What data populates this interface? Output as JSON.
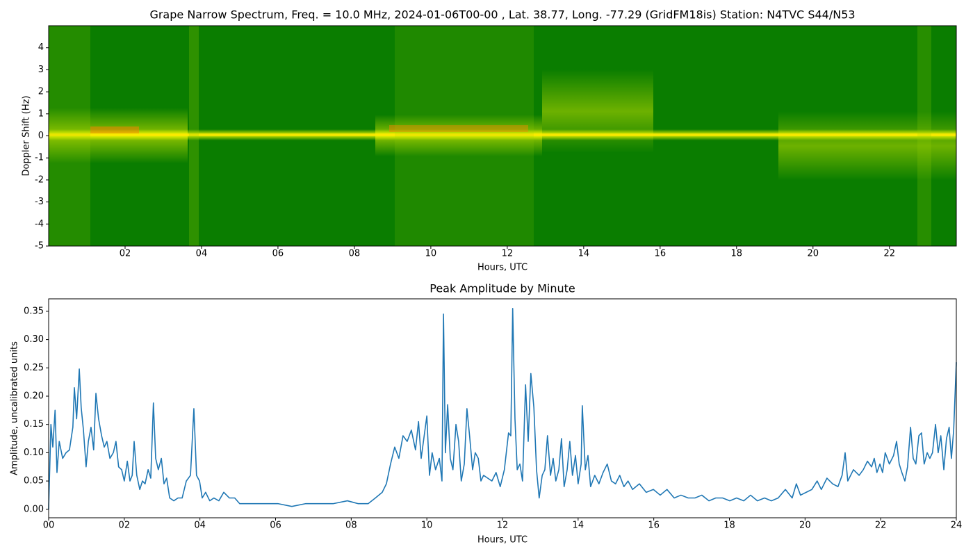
{
  "chart_data": [
    {
      "type": "spectrogram",
      "title": "Grape Narrow Spectrum, Freq. = 10.0 MHz, 2024-01-06T00-00 , Lat.  38.77, Long. -77.29 (GridFM18is) Station: N4TVC S44/N53",
      "x_label": "Hours, UTC",
      "y_label": "Doppler Shift (Hz)",
      "xlim": [
        0,
        23.75
      ],
      "ylim": [
        -5,
        5
      ],
      "xticks": [
        {
          "value": 2,
          "label": "02"
        },
        {
          "value": 4,
          "label": "04"
        },
        {
          "value": 6,
          "label": "06"
        },
        {
          "value": 8,
          "label": "08"
        },
        10,
        12,
        14,
        16,
        18,
        20,
        22
      ],
      "yticks": [
        -5,
        -4,
        -3,
        -2,
        -1,
        0,
        1,
        2,
        3,
        4
      ]
    },
    {
      "type": "line",
      "title": "Peak Amplitude by Minute",
      "x_label": "Hours, UTC",
      "y_label": "Amplitude, uncalibrated units",
      "color": "#1f77b4",
      "xlim": [
        0,
        24
      ],
      "ylim": [
        -0.015,
        0.372
      ],
      "xticks": [
        {
          "value": 0,
          "label": "00"
        },
        {
          "value": 2,
          "label": "02"
        },
        {
          "value": 4,
          "label": "04"
        },
        {
          "value": 6,
          "label": "06"
        },
        {
          "value": 8,
          "label": "08"
        },
        10,
        12,
        14,
        16,
        18,
        20,
        22,
        24
      ],
      "yticks": [
        {
          "value": 0,
          "label": "0.00"
        },
        0.05,
        {
          "value": 0.1,
          "label": "0.10"
        },
        0.15,
        {
          "value": 0.2,
          "label": "0.20"
        },
        0.25,
        {
          "value": 0.3,
          "label": "0.30"
        },
        0.35
      ],
      "x": [
        0,
        0.06,
        0.11,
        0.17,
        0.22,
        0.28,
        0.37,
        0.46,
        0.55,
        0.64,
        0.68,
        0.74,
        0.81,
        0.86,
        0.92,
        0.99,
        1.05,
        1.12,
        1.19,
        1.25,
        1.32,
        1.4,
        1.47,
        1.54,
        1.62,
        1.71,
        1.78,
        1.85,
        1.93,
        2.0,
        2.08,
        2.15,
        2.21,
        2.26,
        2.33,
        2.41,
        2.48,
        2.55,
        2.63,
        2.7,
        2.77,
        2.83,
        2.9,
        2.98,
        3.05,
        3.12,
        3.2,
        3.31,
        3.42,
        3.53,
        3.64,
        3.75,
        3.84,
        3.91,
        3.99,
        4.06,
        4.15,
        4.26,
        4.37,
        4.5,
        4.63,
        4.78,
        4.92,
        5.05,
        5.33,
        5.7,
        6.06,
        6.43,
        6.8,
        7.17,
        7.53,
        7.9,
        8.18,
        8.45,
        8.64,
        8.82,
        8.93,
        9.04,
        9.15,
        9.26,
        9.37,
        9.48,
        9.59,
        9.7,
        9.78,
        9.85,
        9.92,
        10.0,
        10.07,
        10.14,
        10.23,
        10.33,
        10.4,
        10.44,
        10.49,
        10.55,
        10.62,
        10.69,
        10.77,
        10.84,
        10.91,
        10.99,
        11.06,
        11.13,
        11.21,
        11.28,
        11.36,
        11.43,
        11.5,
        11.61,
        11.72,
        11.83,
        11.94,
        12.05,
        12.16,
        12.22,
        12.27,
        12.33,
        12.39,
        12.46,
        12.53,
        12.61,
        12.68,
        12.75,
        12.83,
        12.9,
        12.97,
        13.05,
        13.12,
        13.19,
        13.27,
        13.34,
        13.41,
        13.49,
        13.56,
        13.63,
        13.71,
        13.78,
        13.85,
        13.93,
        14.0,
        14.08,
        14.11,
        14.19,
        14.26,
        14.33,
        14.44,
        14.55,
        14.66,
        14.77,
        14.88,
        14.99,
        15.1,
        15.21,
        15.32,
        15.44,
        15.62,
        15.8,
        15.99,
        16.17,
        16.35,
        16.54,
        16.72,
        16.91,
        17.09,
        17.27,
        17.46,
        17.64,
        17.82,
        18.01,
        18.19,
        18.38,
        18.56,
        18.74,
        18.93,
        19.11,
        19.29,
        19.48,
        19.66,
        19.77,
        19.88,
        20.03,
        20.18,
        20.32,
        20.43,
        20.58,
        20.73,
        20.87,
        20.98,
        21.06,
        21.13,
        21.28,
        21.43,
        21.54,
        21.65,
        21.76,
        21.83,
        21.9,
        21.98,
        22.05,
        22.12,
        22.23,
        22.34,
        22.42,
        22.49,
        22.56,
        22.64,
        22.71,
        22.79,
        22.86,
        22.93,
        23.01,
        23.08,
        23.15,
        23.23,
        23.3,
        23.37,
        23.45,
        23.52,
        23.59,
        23.67,
        23.74,
        23.81,
        23.87,
        23.93,
        24.0
      ],
      "values": [
        0,
        0.15,
        0.11,
        0.175,
        0.065,
        0.12,
        0.09,
        0.1,
        0.105,
        0.145,
        0.215,
        0.16,
        0.248,
        0.18,
        0.14,
        0.075,
        0.12,
        0.145,
        0.105,
        0.205,
        0.16,
        0.13,
        0.11,
        0.12,
        0.09,
        0.1,
        0.12,
        0.075,
        0.07,
        0.05,
        0.085,
        0.05,
        0.06,
        0.12,
        0.06,
        0.035,
        0.05,
        0.045,
        0.07,
        0.055,
        0.188,
        0.09,
        0.07,
        0.09,
        0.045,
        0.055,
        0.02,
        0.015,
        0.02,
        0.02,
        0.05,
        0.06,
        0.178,
        0.06,
        0.05,
        0.02,
        0.03,
        0.015,
        0.02,
        0.015,
        0.03,
        0.02,
        0.02,
        0.01,
        0.01,
        0.01,
        0.01,
        0.005,
        0.01,
        0.01,
        0.01,
        0.015,
        0.01,
        0.01,
        0.02,
        0.03,
        0.045,
        0.08,
        0.11,
        0.09,
        0.13,
        0.12,
        0.14,
        0.105,
        0.155,
        0.09,
        0.125,
        0.165,
        0.06,
        0.1,
        0.07,
        0.09,
        0.05,
        0.345,
        0.1,
        0.185,
        0.09,
        0.07,
        0.15,
        0.12,
        0.05,
        0.08,
        0.178,
        0.13,
        0.07,
        0.1,
        0.09,
        0.05,
        0.06,
        0.055,
        0.05,
        0.065,
        0.04,
        0.07,
        0.135,
        0.13,
        0.355,
        0.16,
        0.07,
        0.08,
        0.05,
        0.22,
        0.12,
        0.24,
        0.18,
        0.07,
        0.02,
        0.06,
        0.07,
        0.13,
        0.06,
        0.09,
        0.05,
        0.07,
        0.125,
        0.04,
        0.07,
        0.12,
        0.06,
        0.095,
        0.045,
        0.08,
        0.183,
        0.07,
        0.095,
        0.04,
        0.06,
        0.045,
        0.065,
        0.08,
        0.05,
        0.045,
        0.06,
        0.04,
        0.05,
        0.035,
        0.045,
        0.03,
        0.035,
        0.025,
        0.035,
        0.02,
        0.025,
        0.02,
        0.02,
        0.025,
        0.015,
        0.02,
        0.02,
        0.015,
        0.02,
        0.015,
        0.025,
        0.015,
        0.02,
        0.015,
        0.02,
        0.035,
        0.02,
        0.045,
        0.025,
        0.03,
        0.035,
        0.05,
        0.035,
        0.055,
        0.045,
        0.04,
        0.06,
        0.1,
        0.05,
        0.07,
        0.06,
        0.07,
        0.085,
        0.075,
        0.09,
        0.065,
        0.08,
        0.065,
        0.1,
        0.08,
        0.095,
        0.12,
        0.08,
        0.065,
        0.05,
        0.075,
        0.145,
        0.09,
        0.08,
        0.13,
        0.135,
        0.08,
        0.1,
        0.09,
        0.1,
        0.15,
        0.1,
        0.13,
        0.07,
        0.125,
        0.145,
        0.09,
        0.14,
        0.26
      ]
    }
  ]
}
